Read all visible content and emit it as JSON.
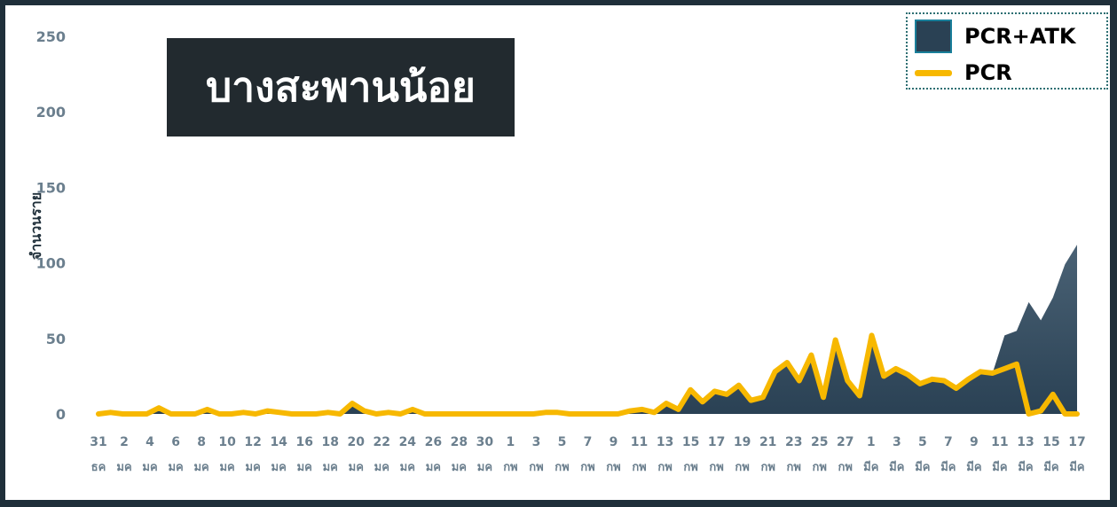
{
  "title": "บางสะพานน้อย",
  "legend": {
    "area_label": "PCR+ATK",
    "line_label": "PCR"
  },
  "colors": {
    "area": "#2a4154",
    "line": "#f7b800",
    "frame": "#1f2f3a",
    "title_bg": "#222a2f"
  },
  "chart_data": {
    "type": "area",
    "ylabel": "จำนวนราย",
    "ylim": [
      0,
      250
    ],
    "yticks": [
      0,
      50,
      100,
      150,
      200,
      250
    ],
    "grid": false,
    "legend_position": "top-right",
    "x_labels": [
      {
        "day": "31",
        "mon": "ธค"
      },
      {
        "day": "2",
        "mon": "มค"
      },
      {
        "day": "4",
        "mon": "มค"
      },
      {
        "day": "6",
        "mon": "มค"
      },
      {
        "day": "8",
        "mon": "มค"
      },
      {
        "day": "10",
        "mon": "มค"
      },
      {
        "day": "12",
        "mon": "มค"
      },
      {
        "day": "14",
        "mon": "มค"
      },
      {
        "day": "16",
        "mon": "มค"
      },
      {
        "day": "18",
        "mon": "มค"
      },
      {
        "day": "20",
        "mon": "มค"
      },
      {
        "day": "22",
        "mon": "มค"
      },
      {
        "day": "24",
        "mon": "มค"
      },
      {
        "day": "26",
        "mon": "มค"
      },
      {
        "day": "28",
        "mon": "มค"
      },
      {
        "day": "30",
        "mon": "มค"
      },
      {
        "day": "1",
        "mon": "กพ"
      },
      {
        "day": "3",
        "mon": "กพ"
      },
      {
        "day": "5",
        "mon": "กพ"
      },
      {
        "day": "7",
        "mon": "กพ"
      },
      {
        "day": "9",
        "mon": "กพ"
      },
      {
        "day": "11",
        "mon": "กพ"
      },
      {
        "day": "13",
        "mon": "กพ"
      },
      {
        "day": "15",
        "mon": "กพ"
      },
      {
        "day": "17",
        "mon": "กพ"
      },
      {
        "day": "19",
        "mon": "กพ"
      },
      {
        "day": "21",
        "mon": "กพ"
      },
      {
        "day": "23",
        "mon": "กพ"
      },
      {
        "day": "25",
        "mon": "กพ"
      },
      {
        "day": "27",
        "mon": "กพ"
      },
      {
        "day": "1",
        "mon": "มีค"
      },
      {
        "day": "3",
        "mon": "มีค"
      },
      {
        "day": "5",
        "mon": "มีค"
      },
      {
        "day": "7",
        "mon": "มีค"
      },
      {
        "day": "9",
        "mon": "มีค"
      },
      {
        "day": "11",
        "mon": "มีค"
      },
      {
        "day": "13",
        "mon": "มีค"
      },
      {
        "day": "15",
        "mon": "มีค"
      },
      {
        "day": "17",
        "mon": "มีค"
      }
    ],
    "series": [
      {
        "name": "PCR+ATK",
        "kind": "area",
        "values": [
          0,
          1,
          0,
          0,
          0,
          4,
          0,
          0,
          0,
          3,
          0,
          0,
          1,
          0,
          2,
          1,
          0,
          0,
          0,
          1,
          0,
          7,
          2,
          0,
          1,
          0,
          3,
          0,
          0,
          0,
          0,
          0,
          0,
          0,
          0,
          0,
          0,
          1,
          1,
          0,
          0,
          0,
          0,
          0,
          2,
          3,
          1,
          7,
          3,
          16,
          8,
          15,
          13,
          19,
          9,
          11,
          28,
          34,
          22,
          39,
          11,
          49,
          22,
          12,
          52,
          25,
          30,
          26,
          20,
          23,
          22,
          17,
          23,
          28,
          27,
          52,
          55,
          74,
          62,
          77,
          99,
          112
        ]
      },
      {
        "name": "PCR",
        "kind": "line",
        "values": [
          0,
          1,
          0,
          0,
          0,
          4,
          0,
          0,
          0,
          3,
          0,
          0,
          1,
          0,
          2,
          1,
          0,
          0,
          0,
          1,
          0,
          7,
          2,
          0,
          1,
          0,
          3,
          0,
          0,
          0,
          0,
          0,
          0,
          0,
          0,
          0,
          0,
          1,
          1,
          0,
          0,
          0,
          0,
          0,
          2,
          3,
          1,
          7,
          3,
          16,
          8,
          15,
          13,
          19,
          9,
          11,
          28,
          34,
          22,
          39,
          11,
          49,
          22,
          12,
          52,
          25,
          30,
          26,
          20,
          23,
          22,
          17,
          23,
          28,
          27,
          30,
          33,
          0,
          2,
          13,
          0,
          0
        ]
      }
    ]
  }
}
